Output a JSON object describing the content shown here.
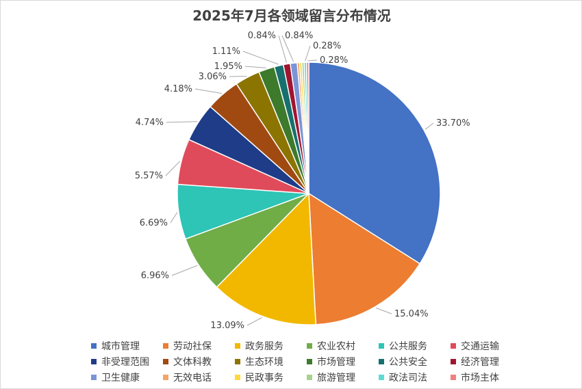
{
  "chart_data": {
    "type": "pie",
    "title": "2025年7月各领域留言分布情况",
    "categories": [
      "城市管理",
      "劳动社保",
      "政务服务",
      "农业农村",
      "公共服务",
      "交通运输",
      "非受理范围",
      "文体科教",
      "生态环境",
      "市场管理",
      "公共安全",
      "经济管理",
      "卫生健康",
      "无效电话",
      "民政事务",
      "旅游管理",
      "政法司法",
      "市场主体"
    ],
    "values": [
      33.7,
      15.04,
      13.09,
      6.96,
      6.69,
      5.57,
      4.74,
      4.18,
      3.06,
      1.95,
      1.11,
      0.84,
      0.84,
      0.28,
      0.28,
      0.28,
      0.28,
      0.28
    ],
    "value_labels": [
      "33.70%",
      "15.04%",
      "13.09%",
      "6.96%",
      "6.69%",
      "5.57%",
      "4.74%",
      "4.18%",
      "3.06%",
      "1.95%",
      "1.11%",
      "0.84%",
      "0.84%",
      "",
      "",
      "",
      "0.28%",
      "0.28%"
    ],
    "colors": [
      "#4472C4",
      "#ED7D31",
      "#F2B800",
      "#70AD47",
      "#2EC4B6",
      "#E04B5B",
      "#1F3C88",
      "#A04A12",
      "#8C7400",
      "#3D7A2B",
      "#17706E",
      "#A01530",
      "#7A95D6",
      "#F4A56A",
      "#FFD93D",
      "#A9D18E",
      "#60DAD5",
      "#F08080"
    ],
    "legend_position": "bottom"
  }
}
